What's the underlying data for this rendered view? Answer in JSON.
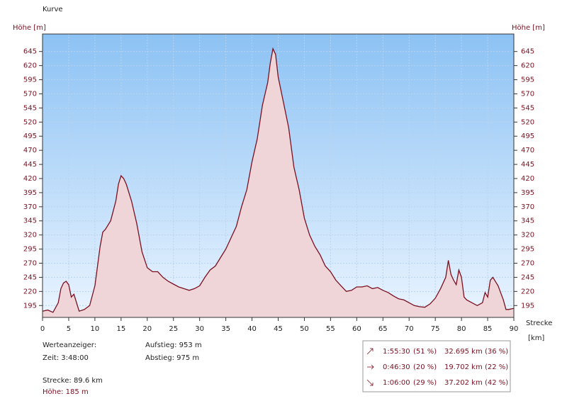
{
  "chart_data": {
    "type": "area",
    "title": "Kurve",
    "ylabel": "Höhe [m]",
    "xlabel": "Strecke",
    "xunit": "[km]",
    "fill": "#efd5d8",
    "color": "#7a1020",
    "xlim": [
      0,
      90
    ],
    "xticks": [
      0,
      5,
      10,
      15,
      20,
      25,
      30,
      35,
      40,
      45,
      50,
      55,
      60,
      65,
      70,
      75,
      80,
      85,
      90
    ],
    "ylim": [
      174,
      676
    ],
    "yticks": [
      195,
      220,
      245,
      270,
      295,
      320,
      345,
      370,
      395,
      420,
      445,
      470,
      495,
      520,
      545,
      570,
      595,
      620,
      645
    ],
    "grid": true,
    "x": [
      0,
      1,
      2,
      3,
      3.5,
      4,
      4.5,
      5,
      5.5,
      6,
      6.5,
      7,
      8,
      9,
      10,
      11,
      11.5,
      12,
      13,
      14,
      14.5,
      15,
      15.5,
      16,
      17,
      18,
      19,
      20,
      21,
      22,
      23,
      24,
      25,
      26,
      27,
      28,
      29,
      30,
      31,
      32,
      33,
      34,
      35,
      36,
      37,
      38,
      39,
      40,
      41,
      42,
      43,
      43.5,
      44,
      44.5,
      45,
      46,
      47,
      48,
      49,
      50,
      51,
      52,
      53,
      54,
      55,
      56,
      57,
      58,
      59,
      60,
      61,
      62,
      63,
      64,
      65,
      66,
      67,
      68,
      69,
      70,
      71,
      72,
      73,
      74,
      75,
      76,
      77,
      77.5,
      78,
      78.5,
      79,
      79.5,
      80,
      80.5,
      81,
      82,
      83,
      84,
      84.5,
      85,
      85.5,
      86,
      87,
      88,
      88.5,
      89,
      90
    ],
    "values": [
      185,
      187,
      183,
      200,
      225,
      235,
      238,
      232,
      210,
      215,
      200,
      185,
      188,
      195,
      230,
      300,
      325,
      330,
      345,
      380,
      410,
      425,
      420,
      410,
      380,
      340,
      290,
      262,
      255,
      255,
      245,
      238,
      233,
      228,
      225,
      222,
      225,
      230,
      245,
      258,
      265,
      280,
      295,
      315,
      335,
      370,
      400,
      450,
      490,
      550,
      590,
      625,
      650,
      640,
      600,
      555,
      510,
      440,
      400,
      350,
      320,
      300,
      285,
      265,
      255,
      240,
      230,
      220,
      222,
      228,
      228,
      230,
      225,
      227,
      222,
      218,
      212,
      207,
      205,
      200,
      195,
      193,
      192,
      198,
      208,
      225,
      245,
      275,
      250,
      240,
      232,
      258,
      245,
      210,
      205,
      200,
      195,
      200,
      218,
      210,
      240,
      245,
      230,
      205,
      188,
      188,
      190
    ]
  },
  "info": {
    "heading": "Werteanzeiger:",
    "time": "Zeit: 3:48:00",
    "ascent": "Aufstieg: 953 m",
    "descent": "Abstieg: 975 m",
    "distance": "Strecke: 89.6 km",
    "height": "Höhe: 185 m"
  },
  "summary": [
    [
      "1:55:30",
      "(51 %)",
      "32.695 km",
      "(36 %)"
    ],
    [
      "0:46:30",
      "(20 %)",
      "19.702 km",
      "(22 %)"
    ],
    [
      "1:06:00",
      "(29 %)",
      "37.202 km",
      "(42 %)"
    ]
  ]
}
